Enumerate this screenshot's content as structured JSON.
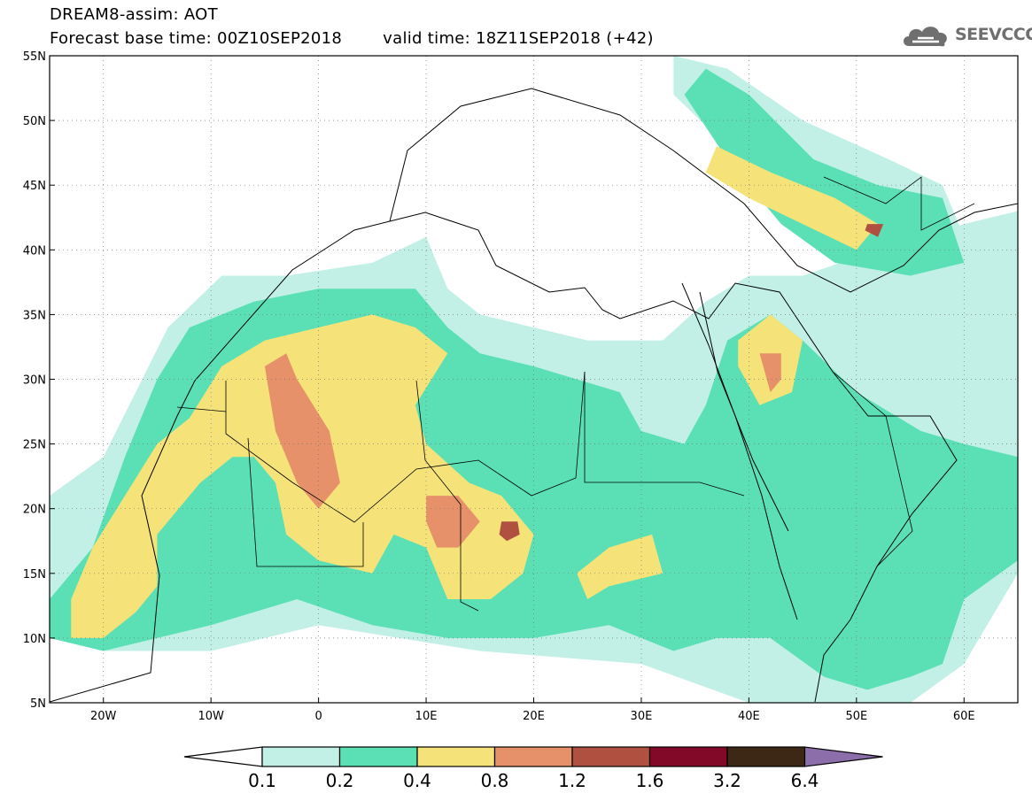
{
  "header": {
    "title": "DREAM8-assim: AOT",
    "base_time_label": "Forecast base time: 00Z10SEP2018",
    "valid_time_label": "valid time: 18Z11SEP2018 (+42)"
  },
  "logo": {
    "text": "SEEVCCC",
    "icon": "cloud-icon",
    "color": "#6f6f6f"
  },
  "map": {
    "lon_range": [
      -25,
      65
    ],
    "lat_range": [
      5,
      55
    ],
    "lon_ticks": [
      "20W",
      "10W",
      "0",
      "10E",
      "20E",
      "30E",
      "40E",
      "50E",
      "60E"
    ],
    "lat_ticks": [
      "55N",
      "50N",
      "45N",
      "40N",
      "35N",
      "30N",
      "25N",
      "20N",
      "15N",
      "10N",
      "5N"
    ],
    "gridlines": "dotted"
  },
  "colorbar": {
    "labels": [
      "0.1",
      "0.2",
      "0.4",
      "0.8",
      "1.2",
      "1.6",
      "3.2",
      "6.4"
    ],
    "colors": [
      "#c2f0e6",
      "#5ae0b4",
      "#f5e37a",
      "#e69169",
      "#b05040",
      "#820a28",
      "#3c2814",
      "#8c6eaa"
    ]
  },
  "chart_data": {
    "type": "heatmap",
    "title": "DREAM8-assim: AOT",
    "variable": "AOT",
    "xlim": [
      -25,
      65
    ],
    "ylim": [
      5,
      55
    ],
    "levels": [
      0.1,
      0.2,
      0.4,
      0.8,
      1.2,
      1.6,
      3.2,
      6.4
    ],
    "regions": [
      {
        "level": 0.1,
        "lonlat": [
          [
            -25,
            21
          ],
          [
            -20,
            24
          ],
          [
            -17,
            29
          ],
          [
            -14,
            34
          ],
          [
            -9,
            38
          ],
          [
            -3,
            38
          ],
          [
            5,
            39
          ],
          [
            10,
            41
          ],
          [
            12,
            37
          ],
          [
            15,
            35
          ],
          [
            20,
            34
          ],
          [
            25,
            33
          ],
          [
            32,
            33
          ],
          [
            36,
            36
          ],
          [
            40,
            38
          ],
          [
            45,
            38
          ],
          [
            52,
            40
          ],
          [
            60,
            42
          ],
          [
            65,
            43
          ],
          [
            65,
            15
          ],
          [
            60,
            8
          ],
          [
            55,
            5
          ],
          [
            40,
            5
          ],
          [
            30,
            8
          ],
          [
            15,
            9
          ],
          [
            0,
            11
          ],
          [
            -10,
            9
          ],
          [
            -20,
            9
          ],
          [
            -25,
            11
          ]
        ]
      },
      {
        "level": 0.1,
        "lonlat": [
          [
            33,
            55
          ],
          [
            38,
            54
          ],
          [
            45,
            50
          ],
          [
            53,
            47
          ],
          [
            58,
            45
          ],
          [
            60,
            41
          ],
          [
            55,
            40
          ],
          [
            48,
            41
          ],
          [
            42,
            43
          ],
          [
            38,
            48
          ],
          [
            33,
            52
          ]
        ]
      },
      {
        "level": 0.2,
        "lonlat": [
          [
            -25,
            13
          ],
          [
            -21,
            17
          ],
          [
            -18,
            24
          ],
          [
            -15,
            30
          ],
          [
            -12,
            34
          ],
          [
            -6,
            36
          ],
          [
            0,
            37
          ],
          [
            5,
            37
          ],
          [
            9,
            37
          ],
          [
            12,
            34
          ],
          [
            15,
            32
          ],
          [
            20,
            31
          ],
          [
            24,
            30
          ],
          [
            28,
            29
          ],
          [
            30,
            26
          ],
          [
            34,
            25
          ],
          [
            36,
            28
          ],
          [
            38,
            33
          ],
          [
            42,
            35
          ],
          [
            45,
            33
          ],
          [
            50,
            29
          ],
          [
            56,
            26
          ],
          [
            60,
            25
          ],
          [
            65,
            24
          ],
          [
            65,
            16
          ],
          [
            60,
            13
          ],
          [
            58,
            8
          ],
          [
            55,
            7
          ],
          [
            51,
            6
          ],
          [
            47,
            7
          ],
          [
            42,
            10
          ],
          [
            37,
            10
          ],
          [
            33,
            9
          ],
          [
            27,
            11
          ],
          [
            20,
            10
          ],
          [
            12,
            10
          ],
          [
            5,
            11
          ],
          [
            -2,
            13
          ],
          [
            -10,
            11
          ],
          [
            -15,
            10
          ],
          [
            -20,
            9
          ],
          [
            -25,
            10
          ]
        ]
      },
      {
        "level": 0.2,
        "lonlat": [
          [
            36,
            54
          ],
          [
            40,
            52
          ],
          [
            46,
            47
          ],
          [
            52,
            45
          ],
          [
            58,
            44
          ],
          [
            60,
            39
          ],
          [
            55,
            38
          ],
          [
            48,
            39
          ],
          [
            43,
            42
          ],
          [
            38,
            47
          ],
          [
            34,
            52
          ]
        ]
      },
      {
        "level": 0.4,
        "lonlat": [
          [
            -23,
            10
          ],
          [
            -23,
            13
          ],
          [
            -21,
            17
          ],
          [
            -18,
            21
          ],
          [
            -15,
            25
          ],
          [
            -12,
            27
          ],
          [
            -9,
            31
          ],
          [
            -5,
            33
          ],
          [
            0,
            34
          ],
          [
            5,
            35
          ],
          [
            9,
            34
          ],
          [
            12,
            32
          ],
          [
            9,
            28
          ],
          [
            10,
            25
          ],
          [
            14,
            22
          ],
          [
            17,
            21
          ],
          [
            20,
            18
          ],
          [
            19,
            15
          ],
          [
            16,
            13
          ],
          [
            12,
            13
          ],
          [
            10,
            17
          ],
          [
            7,
            18
          ],
          [
            5,
            15
          ],
          [
            0,
            16
          ],
          [
            -3,
            18
          ],
          [
            -4,
            22
          ],
          [
            -6,
            24
          ],
          [
            -8,
            24
          ],
          [
            -11,
            22
          ],
          [
            -15,
            18
          ],
          [
            -15,
            14
          ],
          [
            -17,
            12
          ],
          [
            -20,
            10
          ]
        ]
      },
      {
        "level": 0.4,
        "lonlat": [
          [
            37,
            48
          ],
          [
            42,
            46
          ],
          [
            48,
            44
          ],
          [
            52,
            42
          ],
          [
            50,
            40
          ],
          [
            45,
            42
          ],
          [
            40,
            44
          ],
          [
            36,
            46
          ]
        ]
      },
      {
        "level": 0.4,
        "lonlat": [
          [
            39,
            33
          ],
          [
            42,
            35
          ],
          [
            45,
            33
          ],
          [
            44,
            29
          ],
          [
            41,
            28
          ],
          [
            39,
            31
          ]
        ]
      },
      {
        "level": 0.4,
        "lonlat": [
          [
            27,
            17
          ],
          [
            31,
            18
          ],
          [
            32,
            15
          ],
          [
            27,
            14
          ],
          [
            25,
            13
          ],
          [
            24,
            15
          ]
        ]
      },
      {
        "level": 0.8,
        "lonlat": [
          [
            -5,
            31
          ],
          [
            -3,
            32
          ],
          [
            -2,
            30
          ],
          [
            1,
            26
          ],
          [
            2,
            22
          ],
          [
            0,
            20
          ],
          [
            -2,
            22
          ],
          [
            -4,
            26
          ]
        ]
      },
      {
        "level": 0.8,
        "lonlat": [
          [
            10,
            21
          ],
          [
            13,
            21
          ],
          [
            15,
            19
          ],
          [
            13,
            17
          ],
          [
            11,
            17
          ],
          [
            10,
            19
          ]
        ]
      },
      {
        "level": 0.8,
        "lonlat": [
          [
            41,
            32
          ],
          [
            43,
            32
          ],
          [
            43,
            30
          ],
          [
            42,
            29
          ]
        ]
      },
      {
        "level": 1.2,
        "lonlat": [
          [
            17,
            19
          ],
          [
            18.5,
            19
          ],
          [
            18.7,
            18
          ],
          [
            17.5,
            17.5
          ],
          [
            16.8,
            18
          ]
        ]
      },
      {
        "level": 1.2,
        "lonlat": [
          [
            51,
            42
          ],
          [
            52.5,
            42
          ],
          [
            52,
            41
          ],
          [
            50.8,
            41.5
          ]
        ]
      }
    ]
  }
}
